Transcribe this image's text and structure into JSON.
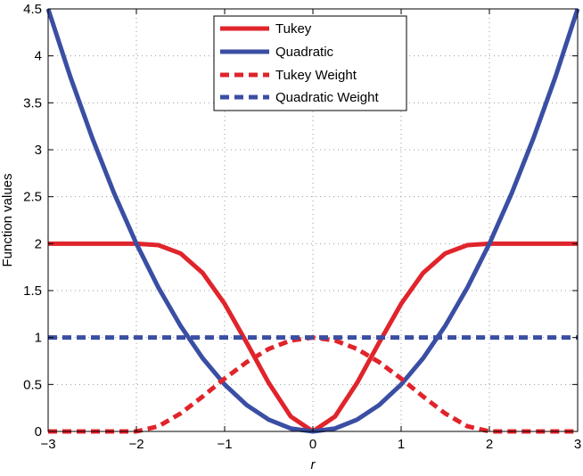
{
  "chart_data": {
    "type": "line",
    "title": "",
    "xlabel": "r",
    "ylabel": "Function values",
    "xlim": [
      -3,
      3
    ],
    "ylim": [
      0,
      4.5
    ],
    "x_ticks": [
      -3,
      -2,
      -1,
      0,
      1,
      2,
      3
    ],
    "x_tick_labels": [
      "−3",
      "−2",
      "−1",
      "0",
      "1",
      "2",
      "3"
    ],
    "y_ticks": [
      0,
      0.5,
      1,
      1.5,
      2,
      2.5,
      3,
      3.5,
      4,
      4.5
    ],
    "y_tick_labels": [
      "0",
      "0.5",
      "1",
      "1.5",
      "2",
      "2.5",
      "3",
      "3.5",
      "4",
      "4.5"
    ],
    "grid": true,
    "legend_position": "top-center",
    "series": [
      {
        "name": "Tukey",
        "color": "#e0242b",
        "style": "solid",
        "x": [
          -3,
          -2.75,
          -2.5,
          -2.25,
          -2,
          -1.75,
          -1.5,
          -1.25,
          -1,
          -0.75,
          -0.5,
          -0.25,
          0,
          0.25,
          0.5,
          0.75,
          1,
          1.25,
          1.5,
          1.75,
          2,
          2.25,
          2.5,
          2.75,
          3
        ],
        "y": [
          2,
          2,
          2,
          2,
          2,
          1.984,
          1.896,
          1.689,
          1.359,
          0.945,
          0.516,
          0.158,
          0,
          0.158,
          0.516,
          0.945,
          1.359,
          1.689,
          1.896,
          1.984,
          2,
          2,
          2,
          2,
          2
        ]
      },
      {
        "name": "Quadratic",
        "color": "#3a4ea3",
        "style": "solid",
        "x": [
          -3,
          -2.75,
          -2.5,
          -2.25,
          -2,
          -1.75,
          -1.5,
          -1.25,
          -1,
          -0.75,
          -0.5,
          -0.25,
          0,
          0.25,
          0.5,
          0.75,
          1,
          1.25,
          1.5,
          1.75,
          2,
          2.25,
          2.5,
          2.75,
          3
        ],
        "y": [
          4.5,
          3.781,
          3.125,
          2.531,
          2,
          1.531,
          1.125,
          0.781,
          0.5,
          0.281,
          0.125,
          0.031,
          0,
          0.031,
          0.125,
          0.281,
          0.5,
          0.781,
          1.125,
          1.531,
          2,
          2.531,
          3.125,
          3.781,
          4.5
        ]
      },
      {
        "name": "Tukey Weight",
        "color": "#e0242b",
        "style": "dashed",
        "x": [
          -3,
          -2.75,
          -2.5,
          -2.25,
          -2,
          -1.75,
          -1.5,
          -1.25,
          -1,
          -0.75,
          -0.5,
          -0.25,
          0,
          0.25,
          0.5,
          0.75,
          1,
          1.25,
          1.5,
          1.75,
          2,
          2.25,
          2.5,
          2.75,
          3
        ],
        "y": [
          0,
          0,
          0,
          0,
          0,
          0.055,
          0.191,
          0.371,
          0.563,
          0.738,
          0.879,
          0.969,
          1,
          0.969,
          0.879,
          0.738,
          0.563,
          0.371,
          0.191,
          0.055,
          0,
          0,
          0,
          0,
          0
        ]
      },
      {
        "name": "Quadratic Weight",
        "color": "#3a4ea3",
        "style": "dashed",
        "x": [
          -3,
          3
        ],
        "y": [
          1,
          1
        ]
      }
    ]
  }
}
